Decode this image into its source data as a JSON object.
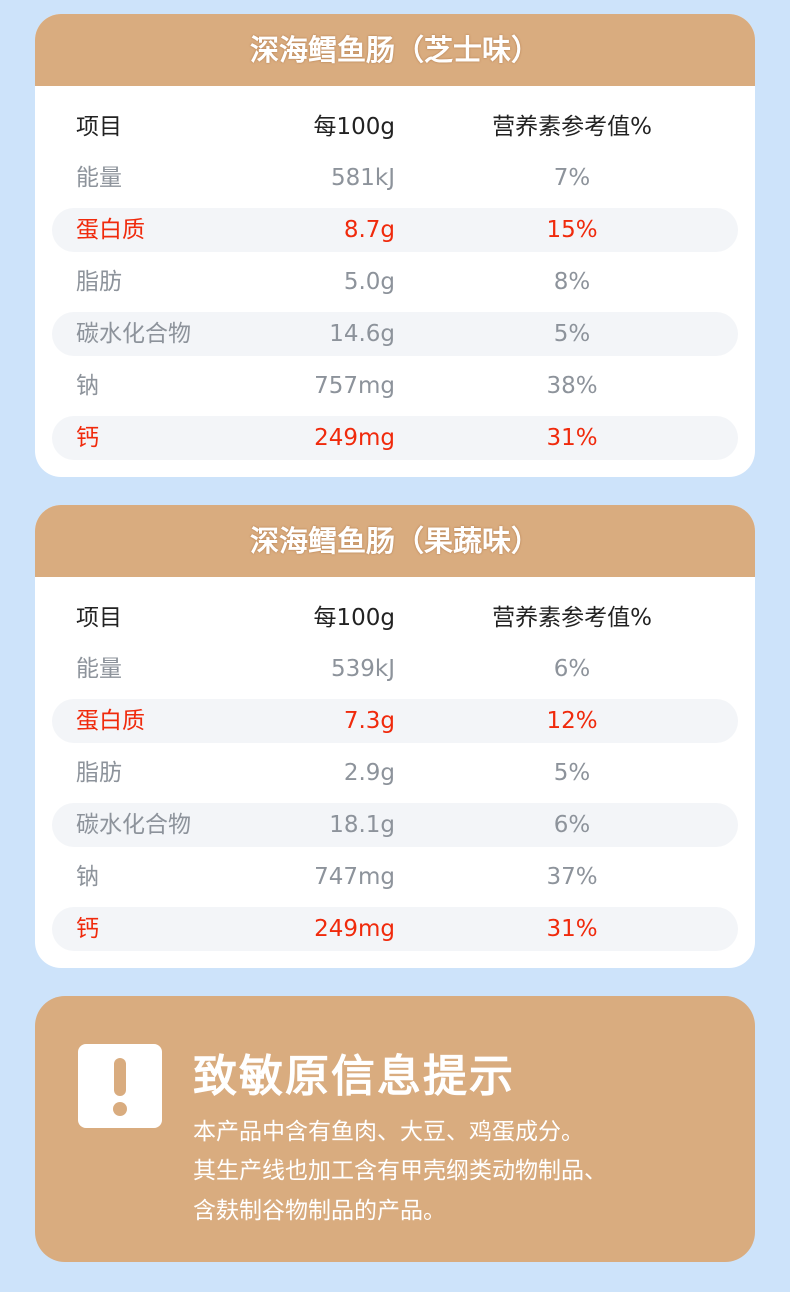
{
  "colors": {
    "background": "#cde3fa",
    "header": "#d9ac7f",
    "highlight": "#f02a0c",
    "muted": "#8d939b"
  },
  "tables": [
    {
      "title": "深海鳕鱼肠（芝士味）",
      "columns": [
        "项目",
        "每100g",
        "营养素参考值%"
      ],
      "rows": [
        {
          "item": "能量",
          "per100g": "581kJ",
          "nrv": "7%",
          "highlight": false
        },
        {
          "item": "蛋白质",
          "per100g": "8.7g",
          "nrv": "15%",
          "highlight": true
        },
        {
          "item": "脂肪",
          "per100g": "5.0g",
          "nrv": "8%",
          "highlight": false
        },
        {
          "item": "碳水化合物",
          "per100g": "14.6g",
          "nrv": "5%",
          "highlight": false
        },
        {
          "item": "钠",
          "per100g": "757mg",
          "nrv": "38%",
          "highlight": false
        },
        {
          "item": "钙",
          "per100g": "249mg",
          "nrv": "31%",
          "highlight": true
        }
      ]
    },
    {
      "title": "深海鳕鱼肠（果蔬味）",
      "columns": [
        "项目",
        "每100g",
        "营养素参考值%"
      ],
      "rows": [
        {
          "item": "能量",
          "per100g": "539kJ",
          "nrv": "6%",
          "highlight": false
        },
        {
          "item": "蛋白质",
          "per100g": "7.3g",
          "nrv": "12%",
          "highlight": true
        },
        {
          "item": "脂肪",
          "per100g": "2.9g",
          "nrv": "5%",
          "highlight": false
        },
        {
          "item": "碳水化合物",
          "per100g": "18.1g",
          "nrv": "6%",
          "highlight": false
        },
        {
          "item": "钠",
          "per100g": "747mg",
          "nrv": "37%",
          "highlight": false
        },
        {
          "item": "钙",
          "per100g": "249mg",
          "nrv": "31%",
          "highlight": true
        }
      ]
    }
  ],
  "allergy": {
    "icon": "exclamation-icon",
    "title": "致敏原信息提示",
    "lines": [
      "本产品中含有鱼肉、大豆、鸡蛋成分。",
      "其生产线也加工含有甲壳纲类动物制品、",
      "含麸制谷物制品的产品。"
    ]
  }
}
